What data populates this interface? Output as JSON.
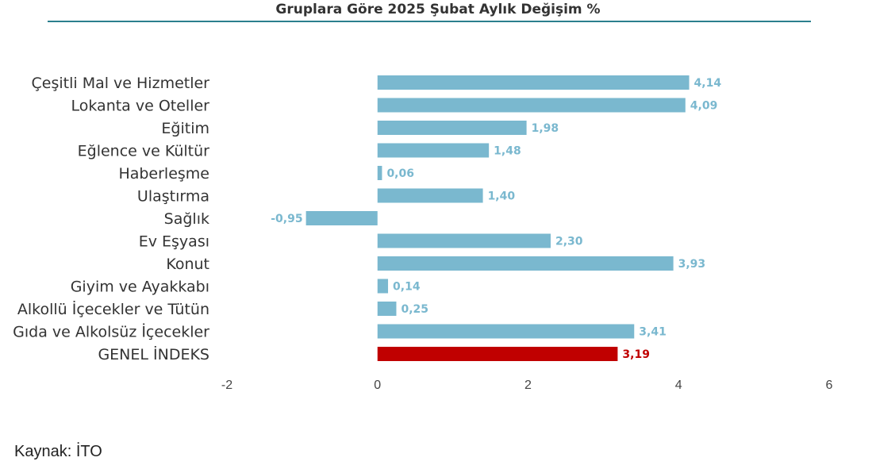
{
  "chart_data": {
    "type": "bar",
    "orientation": "horizontal",
    "title": "Gruplara Göre 2025 Şubat Aylık Değişim %",
    "categories": [
      "Çeşitli Mal ve Hizmetler",
      "Lokanta ve Oteller",
      "Eğitim",
      "Eğlence ve Kültür",
      "Haberleşme",
      "Ulaştırma",
      "Sağlık",
      "Ev Eşyası",
      "Konut",
      "Giyim ve Ayakkabı",
      "Alkollü İçecekler ve Tütün",
      "Gıda ve Alkolsüz İçecekler",
      "GENEL İNDEKS"
    ],
    "values": [
      4.14,
      4.09,
      1.98,
      1.48,
      0.06,
      1.4,
      -0.95,
      2.3,
      3.93,
      0.14,
      0.25,
      3.41,
      3.19
    ],
    "value_labels": [
      "4,14",
      "4,09",
      "1,98",
      "1,48",
      "0,06",
      "1,40",
      "-0,95",
      "2,30",
      "3,93",
      "0,14",
      "0,25",
      "3,41",
      "3,19"
    ],
    "xlim": [
      -2,
      6
    ],
    "xticks": [
      -2,
      0,
      2,
      4,
      6
    ],
    "xtick_labels": [
      "-2",
      "0",
      "2",
      "4",
      "6"
    ],
    "grid": false,
    "legend": "none",
    "colors": {
      "bar": "#7ab8cf",
      "highlight": "#c00000",
      "label": "#7ab8cf",
      "highlight_label": "#c00000",
      "title_rule": "#2b7f8e"
    },
    "highlight_index": 12
  },
  "source": "Kaynak: İTO"
}
